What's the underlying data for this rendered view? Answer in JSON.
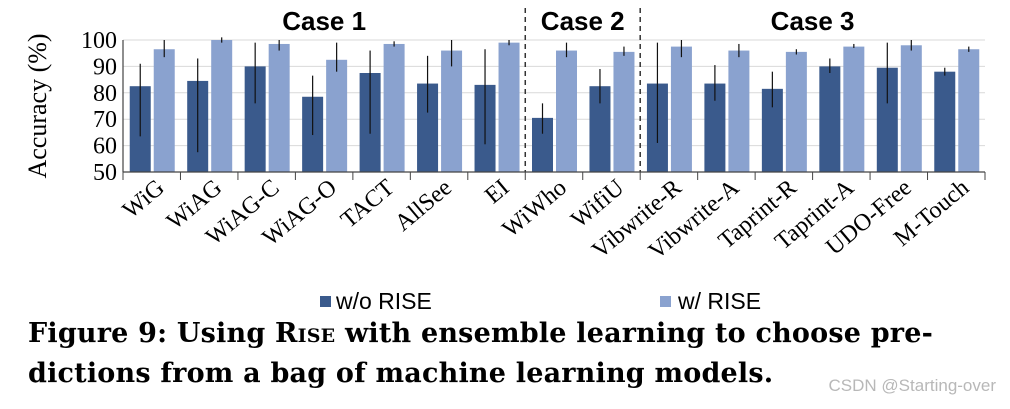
{
  "chart_data": {
    "type": "bar",
    "ylabel": "Accuracy (%)",
    "ylim": [
      50,
      100
    ],
    "yticks": [
      50,
      60,
      70,
      80,
      90,
      100
    ],
    "grid": true,
    "legend_placement": "bottom",
    "groups": [
      {
        "label": "Case 1",
        "count": 7
      },
      {
        "label": "Case 2",
        "count": 2
      },
      {
        "label": "Case  3",
        "count": 6
      }
    ],
    "categories": [
      "WiG",
      "WiAG",
      "WiAG-C",
      "WiAG-O",
      "TACT",
      "AllSee",
      "EI",
      "WiWho",
      "WifiU",
      "Vibwrite-R",
      "Vibwrite-A",
      "Taprint-R",
      "Taprint-A",
      "UDO-Free",
      "M-Touch"
    ],
    "series": [
      {
        "name": "w/o RISE",
        "color": "#3a5a8c",
        "values": [
          82.5,
          84.5,
          90,
          78.5,
          87.5,
          83.5,
          83,
          70.5,
          82.5,
          83.5,
          83.5,
          81.5,
          90,
          89.5,
          88
        ],
        "error_low": [
          63.5,
          57.5,
          76,
          64,
          64.5,
          72.5,
          60.5,
          64.5,
          76,
          61,
          77,
          74.5,
          87.5,
          76,
          86.5
        ],
        "error_high": [
          91,
          93,
          99,
          86.5,
          96,
          94,
          96.5,
          76,
          89,
          99,
          90.5,
          88,
          93,
          99,
          89.5
        ]
      },
      {
        "name": "w/ RISE",
        "color": "#8aa2cf",
        "values": [
          96.5,
          100,
          98.5,
          92.5,
          98.5,
          96,
          99,
          96,
          95.5,
          97.5,
          96,
          95.5,
          97.5,
          98,
          96.5
        ],
        "error_low": [
          93.5,
          99,
          96,
          88,
          97.5,
          90,
          98,
          93.5,
          94,
          93.5,
          93.5,
          94.5,
          97,
          96,
          95.5
        ],
        "error_high": [
          100,
          101,
          100,
          99,
          99.5,
          100,
          100,
          99,
          97.5,
          100,
          98.5,
          96.5,
          98.5,
          100,
          97.5
        ]
      }
    ]
  },
  "caption": {
    "prefix": "Figure 9: Using ",
    "name": "Rise",
    "rest": " with ensemble learning to choose pre-dictions from a bag of machine learning models."
  },
  "watermark": "CSDN @Starting-over"
}
